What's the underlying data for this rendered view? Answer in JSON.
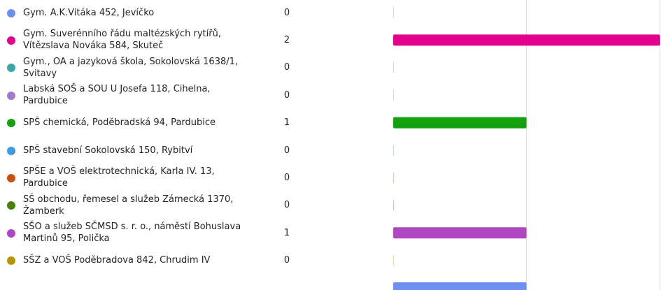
{
  "chart_data": {
    "type": "bar",
    "categories": [
      "Gym. A.K.Vitáka 452, Jevíčko",
      "Gym. Suverénního řádu maltézských rytířů, Vítězslava Nováka 584, Skuteč",
      "Gym., OA a jazyková škola, Sokolovská 1638/1, Svitavy",
      "Labská SOŠ a SOU U Josefa 118, Cihelna, Pardubice",
      "SPŠ chemická, Poděbradská 94, Pardubice",
      "SPŠ stavební Sokolovská 150, Rybitví",
      "SPŠE a VOŠ elektrotechnická, Karla IV. 13, Pardubice",
      "SŠ obchodu, řemesel a služeb Zámecká 1370, Žamberk",
      "SŠO a služeb SČMSD s. r. o., náměstí Bohuslava Martinů 95, Polička",
      "SŠZ a VOŠ Poděbradova 842, Chrudim IV",
      null
    ],
    "values": [
      0,
      2,
      0,
      0,
      1,
      0,
      0,
      0,
      1,
      0,
      1
    ],
    "colors": [
      "#6d8ff0",
      "#e3008c",
      "#3aa8a8",
      "#a07cc8",
      "#13a10e",
      "#3b9ae0",
      "#ca5010",
      "#498205",
      "#b146c2",
      "#b89500",
      "#6d8ff0"
    ],
    "xlim": [
      0,
      2
    ],
    "xticks": [
      0,
      1,
      2
    ],
    "grid": true
  }
}
